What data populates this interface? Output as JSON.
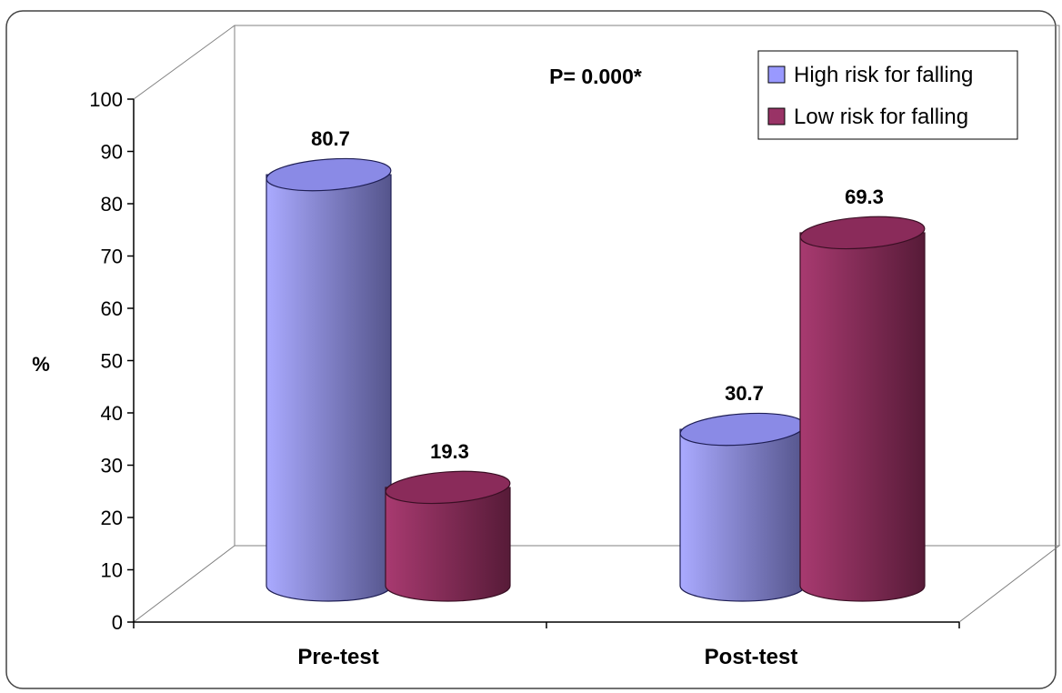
{
  "chart_data": {
    "type": "bar",
    "title": "",
    "ylabel": "%",
    "xlabel": "",
    "categories": [
      "Pre-test",
      "Post-test"
    ],
    "series": [
      {
        "name": "High risk for falling",
        "values": [
          80.7,
          30.7
        ]
      },
      {
        "name": "Low risk for falling",
        "values": [
          19.3,
          69.3
        ]
      }
    ],
    "data_labels": [
      [
        "80.7",
        "30.7"
      ],
      [
        "19.3",
        "69.3"
      ]
    ],
    "ylim": [
      0,
      100
    ],
    "yticks": [
      "0",
      "10",
      "20",
      "30",
      "40",
      "50",
      "60",
      "70",
      "80",
      "90",
      "100"
    ],
    "annotation": "P= 0.000*",
    "legend_position": "top-right",
    "grid": false,
    "style": "3d-cylinder",
    "colors": {
      "high_risk": "#9999ff",
      "high_risk_dark": "#5a5a96",
      "low_risk": "#993366",
      "low_risk_dark": "#5a1e3c"
    }
  }
}
